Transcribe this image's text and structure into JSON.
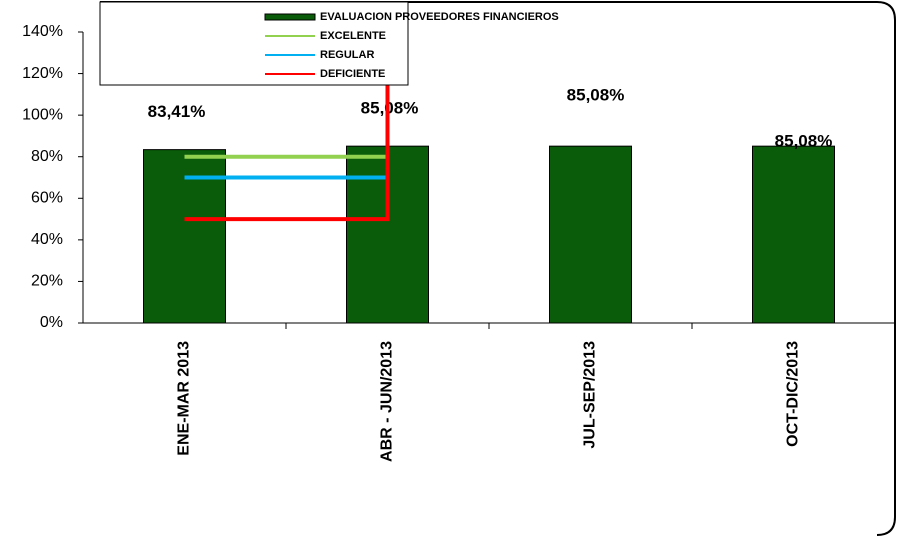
{
  "chart_data": {
    "type": "bar",
    "categories": [
      "ENE-MAR 2013",
      "ABR - JUN/2013",
      "JUL-SEP/2013",
      "OCT-DIC/2013"
    ],
    "series": [
      {
        "name": "EVALUACION PROVEEDORES  FINANCIEROS",
        "type": "bar",
        "color": "#0a5c0a",
        "values": [
          83.41,
          85.08,
          85.08,
          85.08
        ],
        "value_labels": [
          "83,41%",
          "85,08%",
          "85,08%",
          "85,08%"
        ]
      },
      {
        "name": "EXCELENTE",
        "type": "line",
        "color": "#92d050",
        "x": [
          1,
          2
        ],
        "values": [
          80,
          80
        ]
      },
      {
        "name": "REGULAR",
        "type": "line",
        "color": "#00b0f0",
        "x": [
          1,
          2
        ],
        "values": [
          70,
          70
        ]
      },
      {
        "name": "DEFICIENTE",
        "type": "line",
        "color": "#ff0000",
        "x": [
          1,
          2,
          2
        ],
        "values": [
          50,
          50,
          140
        ]
      }
    ],
    "ylim": [
      0,
      140
    ],
    "yticks": [
      {
        "value": 0,
        "label": "0%"
      },
      {
        "value": 20,
        "label": "20%"
      },
      {
        "value": 40,
        "label": "40%"
      },
      {
        "value": 60,
        "label": "60%"
      },
      {
        "value": 80,
        "label": "80%"
      },
      {
        "value": 100,
        "label": "100%"
      },
      {
        "value": 120,
        "label": "120%"
      },
      {
        "value": 140,
        "label": "140%"
      }
    ],
    "legend": "top"
  }
}
